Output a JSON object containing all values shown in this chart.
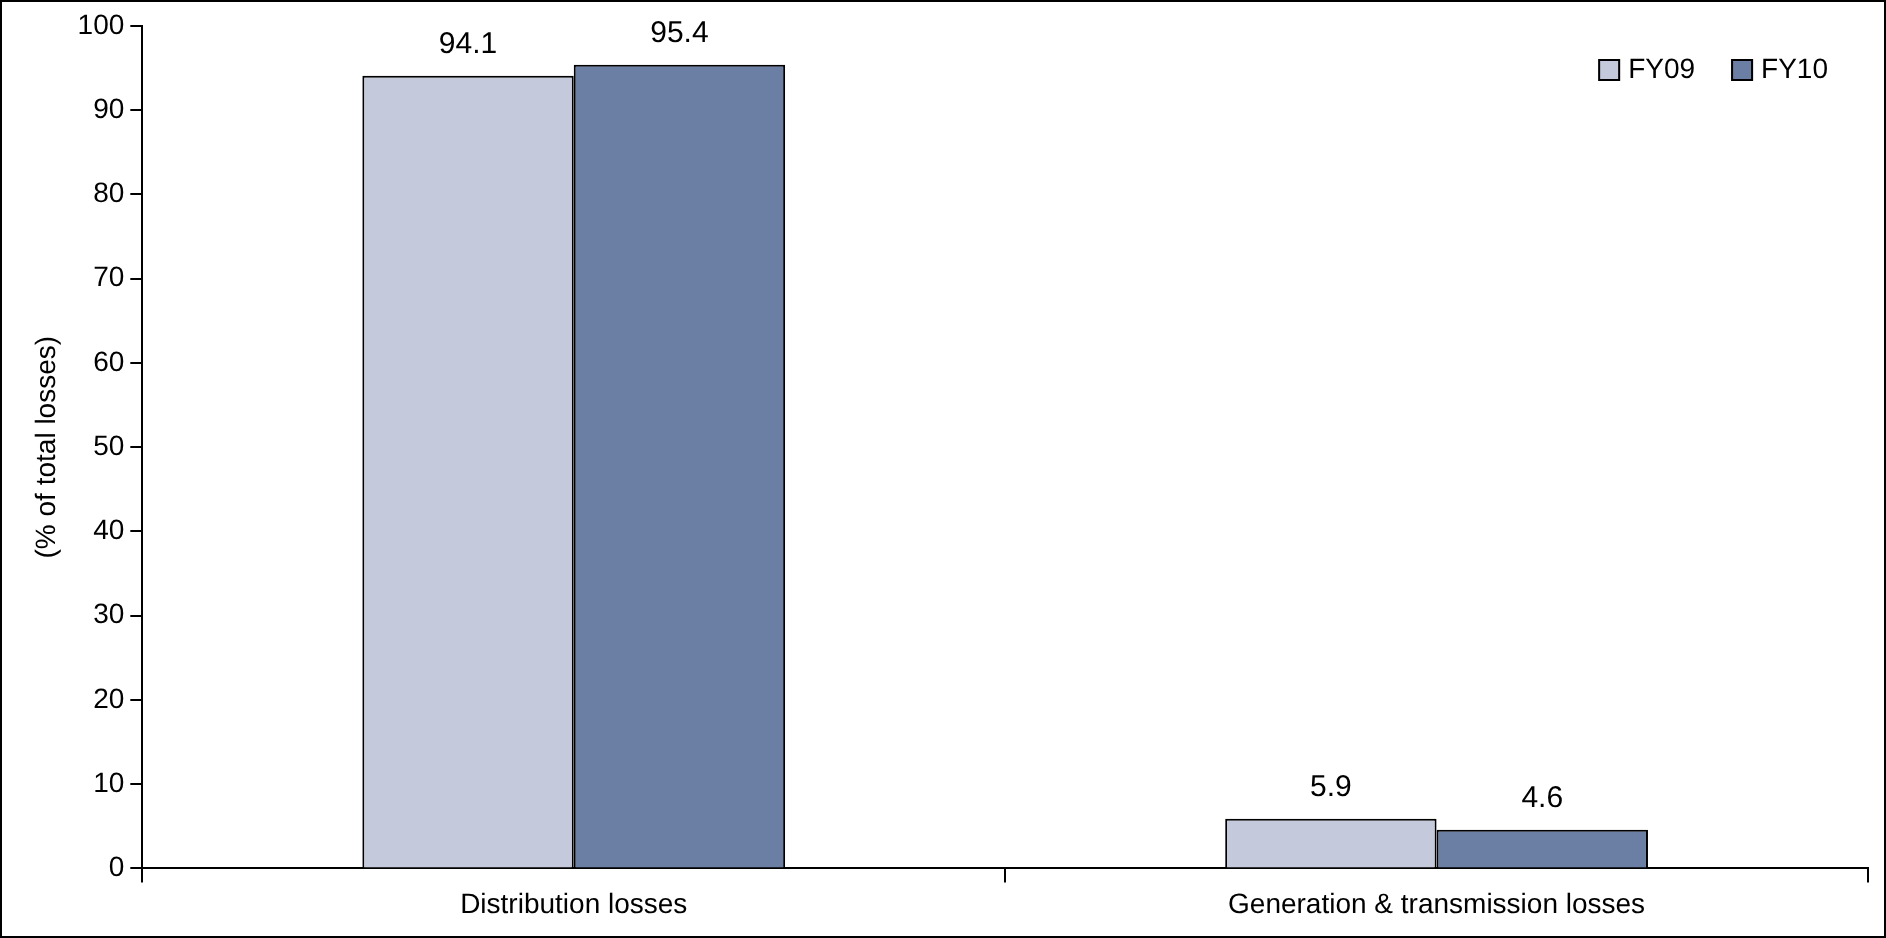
{
  "chart_data": {
    "type": "bar",
    "ylabel": "(% of total losses)",
    "categories": [
      "Distribution losses",
      "Generation & transmission losses"
    ],
    "series": [
      {
        "name": "FY09",
        "color": "#c5c9dc",
        "values": [
          94.1,
          5.9
        ]
      },
      {
        "name": "FY10",
        "color": "#6b7ea3",
        "values": [
          95.4,
          4.6
        ]
      }
    ],
    "ylim": [
      0,
      100
    ],
    "yticks": [
      0,
      10,
      20,
      30,
      40,
      50,
      60,
      70,
      80,
      90,
      100
    ],
    "data_labels": true,
    "legend": "top right",
    "grid": false
  }
}
